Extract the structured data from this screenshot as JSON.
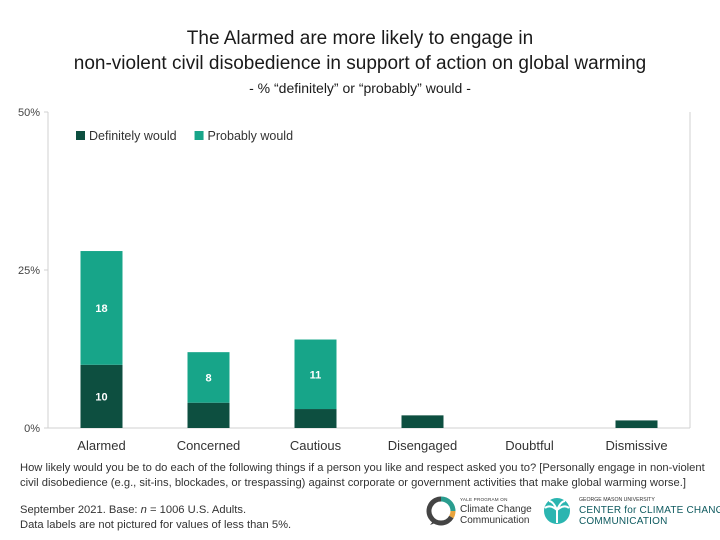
{
  "header": {
    "title_line1": "The Alarmed are more likely to engage in",
    "title_line2": "non-violent civil disobedience in support of action on global warming",
    "subtitle": "- % “definitely” or “probably” would -"
  },
  "chart_data": {
    "type": "bar",
    "stacked": true,
    "categories": [
      "Alarmed",
      "Concerned",
      "Cautious",
      "Disengaged",
      "Doubtful",
      "Dismissive"
    ],
    "series": [
      {
        "name": "Definitely would",
        "values": [
          10,
          4,
          3,
          2,
          0,
          1.2
        ],
        "color": "#0d4f40"
      },
      {
        "name": "Probably would",
        "values": [
          18,
          8,
          11,
          0,
          0,
          0
        ],
        "color": "#17a589"
      }
    ],
    "data_labels": [
      {
        "series": 0,
        "category": 0,
        "text": "10"
      },
      {
        "series": 1,
        "category": 0,
        "text": "18"
      },
      {
        "series": 1,
        "category": 1,
        "text": "8"
      },
      {
        "series": 1,
        "category": 2,
        "text": "11"
      }
    ],
    "yticks": [
      "0%",
      "25%",
      "50%"
    ],
    "ylim": [
      0,
      50
    ],
    "legend_position": "top-left",
    "grid": false
  },
  "question": "How likely would you be to do each of the following things if a person you like and respect asked you to? [Personally engage in non-violent civil disobedience (e.g., sit-ins, blockades, or trespassing) against corporate or government activities that make global warming worse.]",
  "footnote": {
    "base_prefix": "September 2021. Base: ",
    "base_n": "n",
    "base_suffix": " = 1006 U.S. Adults.",
    "note": "Data labels are not pictured for values of less than 5%."
  },
  "logos": {
    "yale_small": "YALE PROGRAM ON",
    "yale_line1": "Climate Change",
    "yale_line2": "Communication",
    "gmu_small": "GEORGE MASON UNIVERSITY",
    "gmu_line1": "CENTER for CLIMATE CHANGE",
    "gmu_line2": "COMMUNICATION"
  }
}
